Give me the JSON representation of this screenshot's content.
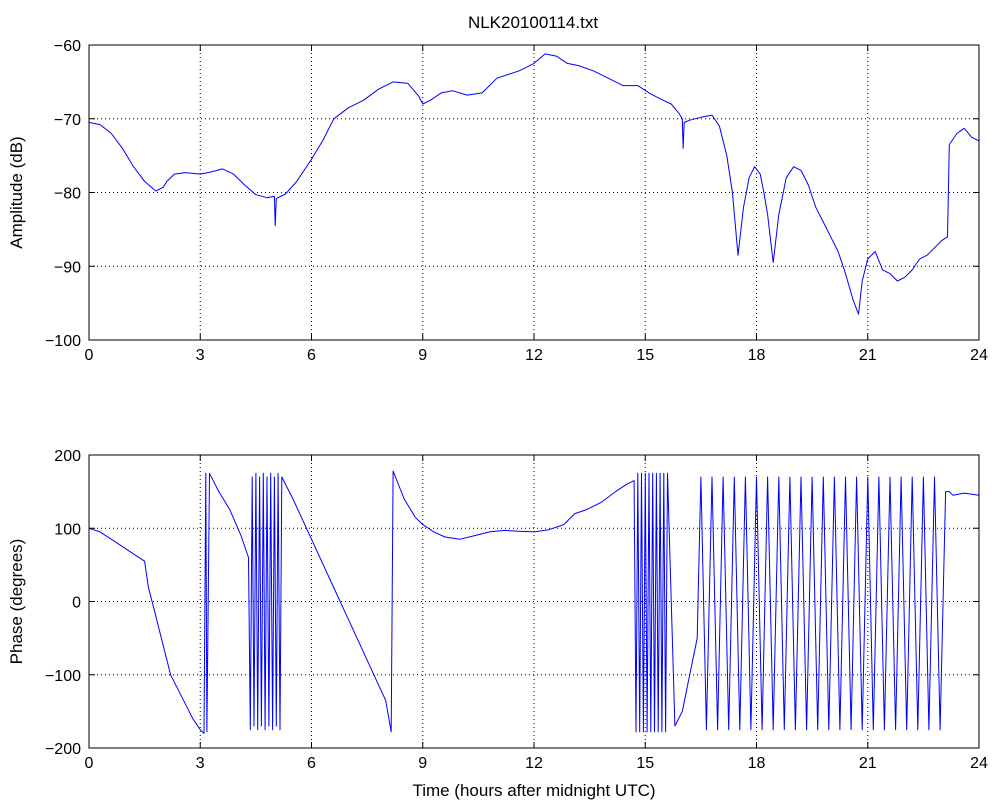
{
  "figure_title": "NLK20100114.txt",
  "chart_data": [
    {
      "type": "line",
      "title": "NLK20100114.txt",
      "xlabel": "",
      "ylabel": "Amplitude (dB)",
      "xlim": [
        0,
        24
      ],
      "ylim": [
        -100,
        -60
      ],
      "xticks": [
        0,
        3,
        6,
        9,
        12,
        15,
        18,
        21,
        24
      ],
      "yticks": [
        -100,
        -90,
        -80,
        -70,
        -60
      ],
      "xtick_labels": [
        "0",
        "3",
        "6",
        "9",
        "12",
        "15",
        "18",
        "21",
        "24"
      ],
      "ytick_labels": [
        "−100",
        "−90",
        "−80",
        "−70",
        "−60"
      ],
      "grid": true,
      "series": [
        {
          "color": "#0000ff",
          "x": [
            0,
            0.3,
            0.6,
            0.9,
            1.2,
            1.5,
            1.8,
            2.0,
            2.1,
            2.3,
            2.6,
            3.0,
            3.3,
            3.6,
            3.9,
            4.2,
            4.5,
            4.8,
            5.0,
            5.02,
            5.05,
            5.3,
            5.6,
            6.0,
            6.3,
            6.6,
            7.0,
            7.4,
            7.8,
            8.2,
            8.6,
            8.9,
            9.0,
            9.2,
            9.5,
            9.8,
            10.2,
            10.6,
            11.0,
            11.3,
            11.6,
            12.0,
            12.3,
            12.6,
            12.9,
            13.2,
            13.6,
            14.0,
            14.4,
            14.8,
            15.1,
            15.4,
            15.7,
            15.9,
            16.0,
            16.02,
            16.05,
            16.2,
            16.5,
            16.8,
            17.0,
            17.2,
            17.35,
            17.5,
            17.65,
            17.8,
            17.95,
            18.1,
            18.2,
            18.3,
            18.45,
            18.6,
            18.8,
            19.0,
            19.2,
            19.4,
            19.6,
            19.8,
            20.0,
            20.2,
            20.4,
            20.6,
            20.75,
            20.85,
            21.0,
            21.2,
            21.4,
            21.6,
            21.8,
            22.0,
            22.2,
            22.4,
            22.6,
            22.8,
            23.0,
            23.15,
            23.2,
            23.4,
            23.6,
            23.8,
            24.0
          ],
          "y": [
            -70.5,
            -70.8,
            -72,
            -74,
            -76.5,
            -78.5,
            -79.8,
            -79.3,
            -78.5,
            -77.5,
            -77.3,
            -77.5,
            -77.2,
            -76.8,
            -77.5,
            -79,
            -80.3,
            -80.7,
            -80.5,
            -84.5,
            -80.8,
            -80.2,
            -78.5,
            -75.5,
            -73,
            -70,
            -68.5,
            -67.5,
            -66,
            -65,
            -65.2,
            -67,
            -68,
            -67.5,
            -66.5,
            -66.2,
            -66.8,
            -66.5,
            -64.5,
            -64,
            -63.5,
            -62.5,
            -61.2,
            -61.5,
            -62.5,
            -62.8,
            -63.5,
            -64.5,
            -65.5,
            -65.5,
            -66.5,
            -67.3,
            -68,
            -69.2,
            -70,
            -74,
            -70.5,
            -70.2,
            -69.8,
            -69.5,
            -71,
            -75,
            -80,
            -88.5,
            -82,
            -78,
            -76.5,
            -77.5,
            -80,
            -83,
            -89.5,
            -83,
            -78,
            -76.5,
            -77,
            -79,
            -82,
            -84,
            -86,
            -88,
            -91,
            -94.5,
            -96.5,
            -92,
            -89,
            -88,
            -90.5,
            -91,
            -92,
            -91.5,
            -90.5,
            -89,
            -88.5,
            -87.5,
            -86.5,
            -86,
            -73.5,
            -72,
            -71.3,
            -72.5,
            -73
          ]
        }
      ]
    },
    {
      "type": "line",
      "title": "",
      "xlabel": "Time (hours after midnight UTC)",
      "ylabel": "Phase (degrees)",
      "xlim": [
        0,
        24
      ],
      "ylim": [
        -200,
        200
      ],
      "xticks": [
        0,
        3,
        6,
        9,
        12,
        15,
        18,
        21,
        24
      ],
      "yticks": [
        -200,
        -100,
        0,
        100,
        200
      ],
      "xtick_labels": [
        "0",
        "3",
        "6",
        "9",
        "12",
        "15",
        "18",
        "21",
        "24"
      ],
      "ytick_labels": [
        "−200",
        "−100",
        "0",
        "100",
        "200"
      ],
      "grid": true,
      "series": [
        {
          "color": "#0000ff",
          "x": [
            0,
            0.3,
            0.6,
            0.9,
            1.2,
            1.5,
            1.6,
            1.8,
            2.0,
            2.2,
            2.5,
            2.8,
            3.0,
            3.1,
            3.15,
            3.18,
            3.25,
            3.5,
            3.8,
            4.1,
            4.3,
            4.35,
            4.4,
            4.45,
            4.5,
            4.55,
            4.6,
            4.65,
            4.7,
            4.75,
            4.8,
            4.85,
            4.9,
            4.95,
            5.0,
            5.05,
            5.1,
            5.15,
            5.2,
            5.5,
            6.0,
            6.5,
            7.0,
            7.5,
            8.0,
            8.15,
            8.2,
            8.5,
            8.8,
            9.0,
            9.3,
            9.6,
            10.0,
            10.4,
            10.8,
            11.2,
            11.6,
            12.0,
            12.4,
            12.8,
            13.1,
            13.4,
            13.8,
            14.2,
            14.5,
            14.7,
            14.75,
            14.8,
            14.85,
            14.9,
            14.95,
            15.0,
            15.05,
            15.1,
            15.15,
            15.2,
            15.25,
            15.3,
            15.35,
            15.4,
            15.45,
            15.5,
            15.55,
            15.6,
            15.8,
            16.0,
            16.2,
            16.4,
            16.5,
            16.65,
            16.8,
            16.95,
            17.1,
            17.25,
            17.4,
            17.55,
            17.7,
            17.85,
            18.0,
            18.15,
            18.3,
            18.45,
            18.6,
            18.75,
            18.9,
            19.05,
            19.2,
            19.35,
            19.5,
            19.65,
            19.8,
            19.95,
            20.1,
            20.25,
            20.4,
            20.55,
            20.7,
            20.85,
            21.0,
            21.15,
            21.3,
            21.45,
            21.6,
            21.75,
            21.9,
            22.05,
            22.2,
            22.35,
            22.5,
            22.65,
            22.8,
            22.95,
            23.1,
            23.2,
            23.3,
            23.6,
            24.0
          ],
          "y": [
            100,
            95,
            85,
            75,
            65,
            55,
            20,
            -20,
            -60,
            -100,
            -130,
            -160,
            -175,
            -180,
            175,
            -178,
            175,
            150,
            125,
            90,
            60,
            -175,
            170,
            -170,
            175,
            -175,
            170,
            -170,
            175,
            -175,
            170,
            -170,
            175,
            -175,
            170,
            -170,
            175,
            -175,
            170,
            140,
            85,
            30,
            -25,
            -80,
            -135,
            -178,
            178,
            140,
            115,
            105,
            95,
            88,
            85,
            90,
            95,
            97,
            96,
            95,
            98,
            105,
            120,
            125,
            135,
            150,
            160,
            165,
            -178,
            175,
            -178,
            175,
            -178,
            175,
            -178,
            175,
            -178,
            175,
            -178,
            175,
            -178,
            175,
            -178,
            175,
            -178,
            175,
            -170,
            -150,
            -100,
            -50,
            170,
            -175,
            170,
            -175,
            170,
            -175,
            170,
            -175,
            170,
            -175,
            170,
            -175,
            170,
            -175,
            170,
            -175,
            170,
            -175,
            170,
            -175,
            170,
            -175,
            170,
            -175,
            170,
            -175,
            170,
            -175,
            170,
            -175,
            170,
            -175,
            170,
            -175,
            170,
            -175,
            170,
            -175,
            170,
            -175,
            170,
            -175,
            170,
            -175,
            150,
            150,
            145,
            148,
            145
          ]
        }
      ]
    }
  ]
}
